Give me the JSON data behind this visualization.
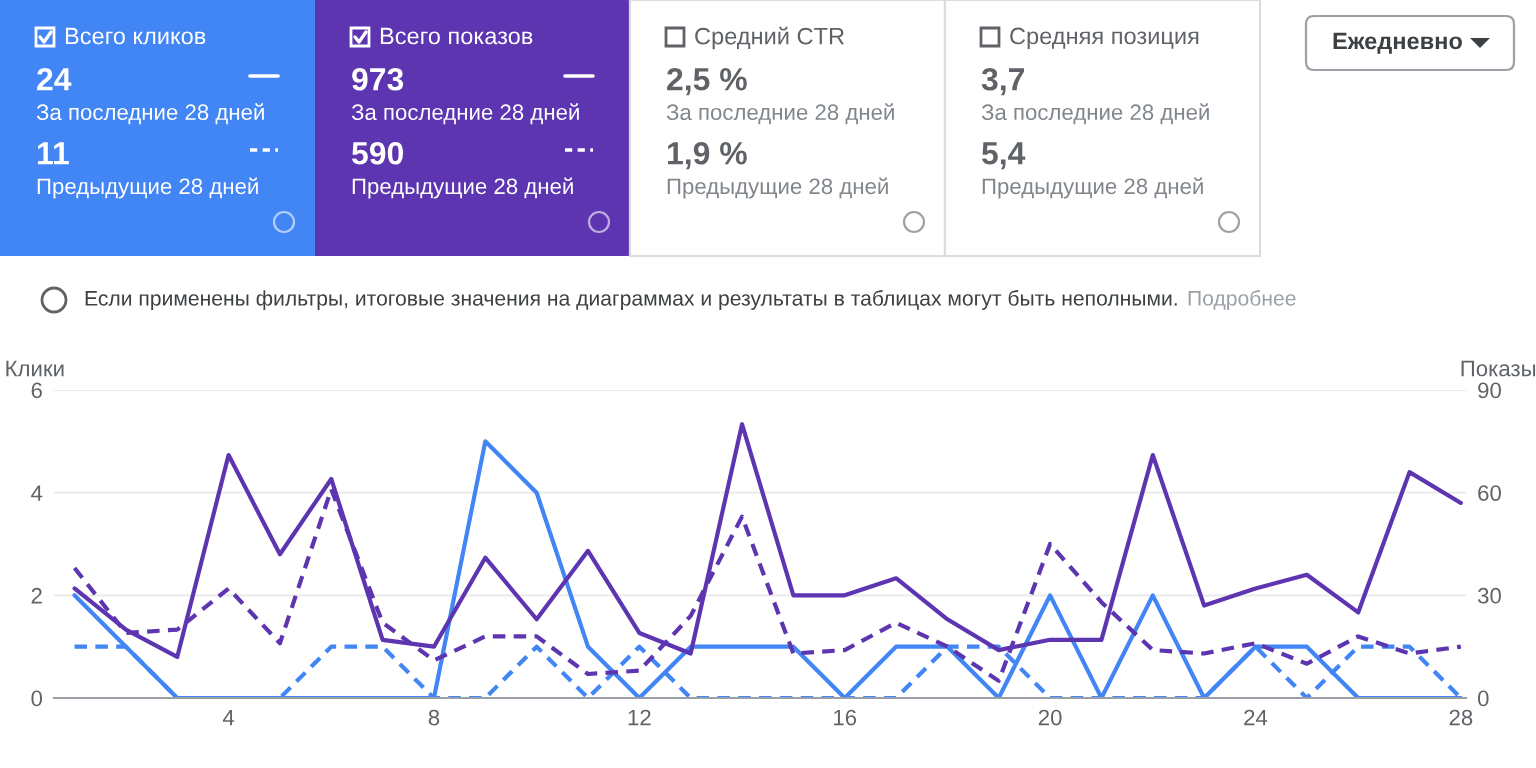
{
  "chart_data": [
    {
      "type": "other",
      "title": "Всего кликов",
      "annotations": [
        "24",
        "За последние 28 дней",
        "11",
        "Предыдущие 28 дней"
      ],
      "color": "#4285f4"
    },
    {
      "type": "other",
      "title": "Всего показов",
      "annotations": [
        "973",
        "За последние 28 дней",
        "590",
        "Предыдущие 28 дней"
      ],
      "color": "#5e35b1"
    },
    {
      "type": "other",
      "title": "Средний CTR",
      "annotations": [
        "2,5 %",
        "За последние 28 дней",
        "1,9 %",
        "Предыдущие 28 дней"
      ]
    },
    {
      "type": "other",
      "title": "Средняя позиция",
      "annotations": [
        "3,7",
        "За последние 28 дней",
        "5,4",
        "Предыдущие 28 дней"
      ]
    },
    {
      "type": "other",
      "title": "Ежедневно"
    },
    {
      "type": "line",
      "ylabel": "Клики",
      "y2label": "Показы",
      "annotations": [
        "Если применены фильтры, итоговые значения на диаграммах и результаты в таблицах могут быть неполными.",
        "Подробнее"
      ],
      "x": [
        1,
        2,
        3,
        4,
        5,
        6,
        7,
        8,
        9,
        10,
        11,
        12,
        13,
        14,
        15,
        16,
        17,
        18,
        19,
        20,
        21,
        22,
        23,
        24,
        25,
        26,
        27,
        28
      ],
      "xlim": [
        0.6,
        28.1
      ],
      "xticks": [
        4,
        8,
        12,
        16,
        20,
        24,
        28
      ],
      "ylim": [
        0,
        6
      ],
      "yticks": [
        0,
        2,
        4,
        6
      ],
      "y2lim": [
        0,
        90
      ],
      "y2ticks": [
        0,
        30,
        60,
        90
      ],
      "grid": "y",
      "marker": "none",
      "series": [
        {
          "color": "#4285f4",
          "line_style": "solid",
          "values": [
            2,
            1,
            0,
            0,
            0,
            0,
            0,
            0,
            5,
            4,
            1,
            0,
            1,
            1,
            1,
            0,
            1,
            1,
            0,
            2,
            0,
            2,
            0,
            1,
            1,
            0,
            0,
            0
          ]
        },
        {
          "color": "#4285f4",
          "line_style": "dashed",
          "values": [
            1,
            1,
            0,
            0,
            0,
            1,
            1,
            0,
            0,
            1,
            0,
            1,
            0,
            0,
            0,
            0,
            0,
            1,
            1,
            0,
            0,
            0,
            0,
            1,
            0,
            1,
            1,
            0
          ]
        },
        {
          "color": "#5e35b1",
          "line_style": "solid",
          "axis": "y2",
          "values": [
            32,
            20,
            12,
            71,
            42,
            64,
            17,
            15,
            41,
            23,
            43,
            19,
            13,
            80,
            30,
            30,
            35,
            23,
            14,
            17,
            17,
            71,
            27,
            32,
            36,
            25,
            66,
            57
          ]
        },
        {
          "color": "#5e35b1",
          "line_style": "dashed",
          "axis": "y2",
          "values": [
            38,
            19,
            20,
            32,
            16,
            61,
            22,
            11,
            18,
            18,
            7,
            8,
            24,
            53,
            13,
            14,
            22,
            15,
            5,
            45,
            28,
            14,
            13,
            16,
            10,
            18,
            13,
            15
          ]
        }
      ]
    }
  ]
}
